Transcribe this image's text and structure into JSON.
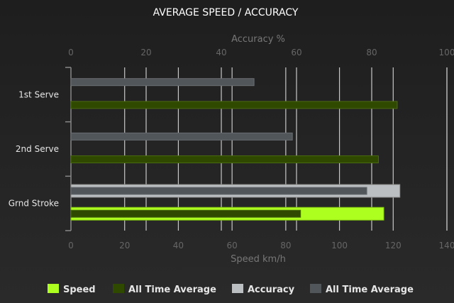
{
  "chart_data": {
    "type": "bar",
    "orientation": "horizontal",
    "title": "AVERAGE SPEED / ACCURACY",
    "categories": [
      "1st Serve",
      "2nd Serve",
      "Grnd Stroke"
    ],
    "x_axis_bottom": {
      "label": "Speed km/h",
      "range": [
        0,
        140
      ],
      "ticks": [
        0,
        20,
        40,
        60,
        80,
        100,
        120,
        140
      ]
    },
    "x_axis_top": {
      "label": "Accuracy %",
      "range": [
        0,
        100
      ],
      "ticks": [
        0,
        20,
        40,
        60,
        80,
        100
      ]
    },
    "grid": true,
    "legend_position": "bottom",
    "series": [
      {
        "name": "Speed",
        "axis": "speed",
        "color": "#adff1f",
        "values": [
          null,
          null,
          116.5
        ]
      },
      {
        "name": "All Time Average",
        "axis": "speed",
        "color": "#2f4a00",
        "values": [
          121.5,
          114.5,
          85.5
        ]
      },
      {
        "name": "Accuracy",
        "axis": "accuracy",
        "color": "#bcbfc1",
        "values": [
          null,
          null,
          87.5
        ]
      },
      {
        "name": "All Time Average",
        "axis": "accuracy",
        "color": "#51565b",
        "values": [
          48.7,
          58.9,
          78.7
        ]
      }
    ]
  }
}
